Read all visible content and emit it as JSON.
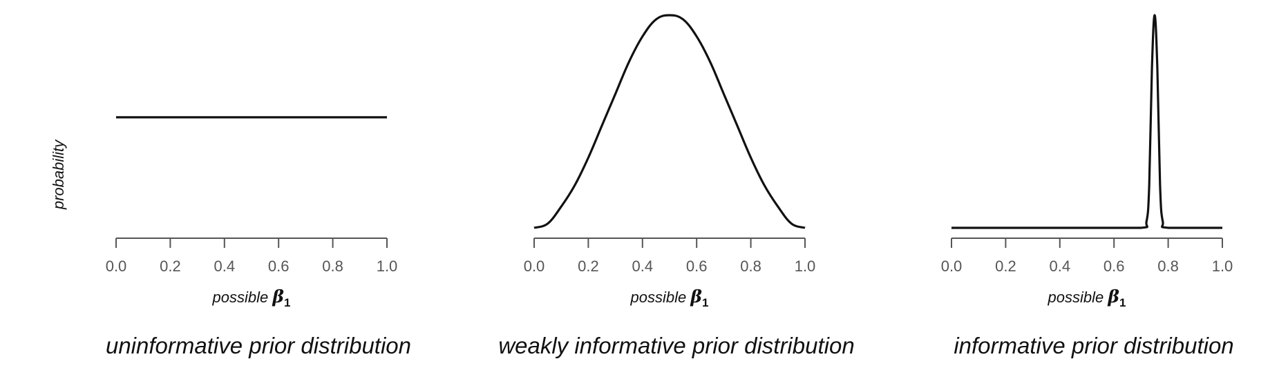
{
  "y_label": "probability",
  "chart_data": [
    {
      "type": "line",
      "xlabel_prefix": "possible",
      "xlabel_symbol": "β",
      "xlabel_subscript": "1",
      "caption": "uninformative prior distribution",
      "x_ticks": [
        "0.0",
        "0.2",
        "0.4",
        "0.6",
        "0.8",
        "1.0"
      ],
      "xlim": [
        0,
        1
      ],
      "ylim": [
        0,
        1
      ],
      "distribution": "uniform",
      "x": [
        0,
        0.1,
        0.2,
        0.3,
        0.4,
        0.5,
        0.6,
        0.7,
        0.8,
        0.9,
        1.0
      ],
      "y": [
        0.52,
        0.52,
        0.52,
        0.52,
        0.52,
        0.52,
        0.52,
        0.52,
        0.52,
        0.52,
        0.52
      ]
    },
    {
      "type": "line",
      "xlabel_prefix": "possible",
      "xlabel_symbol": "β",
      "xlabel_subscript": "1",
      "caption": "weakly informative prior distribution",
      "x_ticks": [
        "0.0",
        "0.2",
        "0.4",
        "0.6",
        "0.8",
        "1.0"
      ],
      "xlim": [
        0,
        1
      ],
      "ylim": [
        0,
        1
      ],
      "distribution": "bell centered at 0.5",
      "x": [
        0,
        0.05,
        0.1,
        0.15,
        0.2,
        0.25,
        0.3,
        0.35,
        0.4,
        0.45,
        0.5,
        0.55,
        0.6,
        0.65,
        0.7,
        0.75,
        0.8,
        0.85,
        0.9,
        0.95,
        1.0
      ],
      "y": [
        0.0,
        0.02,
        0.1,
        0.2,
        0.33,
        0.48,
        0.63,
        0.78,
        0.9,
        0.98,
        1.0,
        0.98,
        0.9,
        0.78,
        0.63,
        0.48,
        0.33,
        0.2,
        0.1,
        0.02,
        0.0
      ]
    },
    {
      "type": "line",
      "xlabel_prefix": "possible",
      "xlabel_symbol": "β",
      "xlabel_subscript": "1",
      "caption": "informative prior distribution",
      "x_ticks": [
        "0.0",
        "0.2",
        "0.4",
        "0.6",
        "0.8",
        "1.0"
      ],
      "xlim": [
        0,
        1
      ],
      "ylim": [
        0,
        1
      ],
      "distribution": "narrow peak at 0.75",
      "x": [
        0,
        0.5,
        0.7,
        0.72,
        0.73,
        0.74,
        0.75,
        0.76,
        0.77,
        0.78,
        0.8,
        1.0
      ],
      "y": [
        0.0,
        0.0,
        0.0,
        0.03,
        0.2,
        0.75,
        1.0,
        0.75,
        0.2,
        0.03,
        0.0,
        0.0
      ]
    }
  ]
}
